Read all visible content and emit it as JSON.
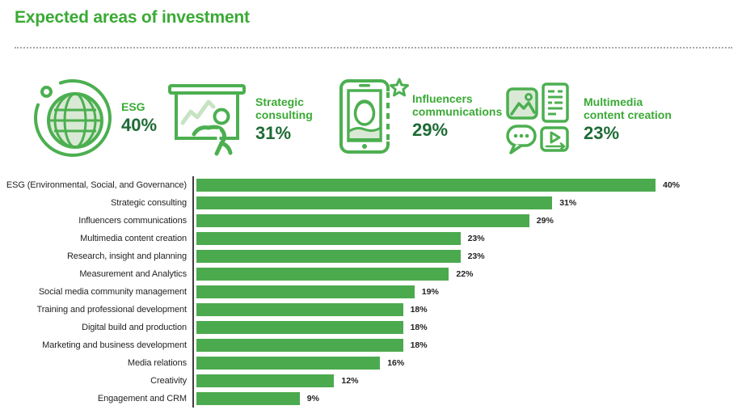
{
  "page": {
    "title": "Expected areas of investment"
  },
  "colors": {
    "brand_green": "#3aaa35",
    "bar_green": "#4caa4e",
    "dark_green": "#1e6b35",
    "icon_green": "#4caf50",
    "icon_fill": "#d9e9d5",
    "text_dark": "#231f20",
    "axis": "#3f3f3d",
    "divider": "#a8a8a7"
  },
  "highlights": [
    {
      "icon": "globe-orbit-icon",
      "label": "ESG",
      "value": "40%"
    },
    {
      "icon": "presentation-chart-icon",
      "label": "Strategic consulting",
      "value": "31%"
    },
    {
      "icon": "influencer-phone-icon",
      "label": "Influencers communications",
      "value": "29%"
    },
    {
      "icon": "multimedia-collage-icon",
      "label": "Multimedia content creation",
      "value": "23%"
    }
  ],
  "chart_data": {
    "type": "bar",
    "orientation": "horizontal",
    "title": "Expected areas of investment",
    "categories": [
      "ESG (Environmental, Social, and Governance)",
      "Strategic consulting",
      "Influencers communications",
      "Multimedia content creation",
      "Research, insight and planning",
      "Measurement and Analytics",
      "Social media community management",
      "Training and professional development",
      "Digital build and production",
      "Marketing and business development",
      "Media relations",
      "Creativity",
      "Engagement and CRM"
    ],
    "values": [
      40,
      31,
      29,
      23,
      23,
      22,
      19,
      18,
      18,
      18,
      16,
      12,
      9
    ],
    "value_suffix": "%",
    "xlim": [
      0,
      42
    ],
    "grid": false,
    "bar_color": "#4caa4e",
    "value_labels": "end-of-bar",
    "legend": "none"
  }
}
